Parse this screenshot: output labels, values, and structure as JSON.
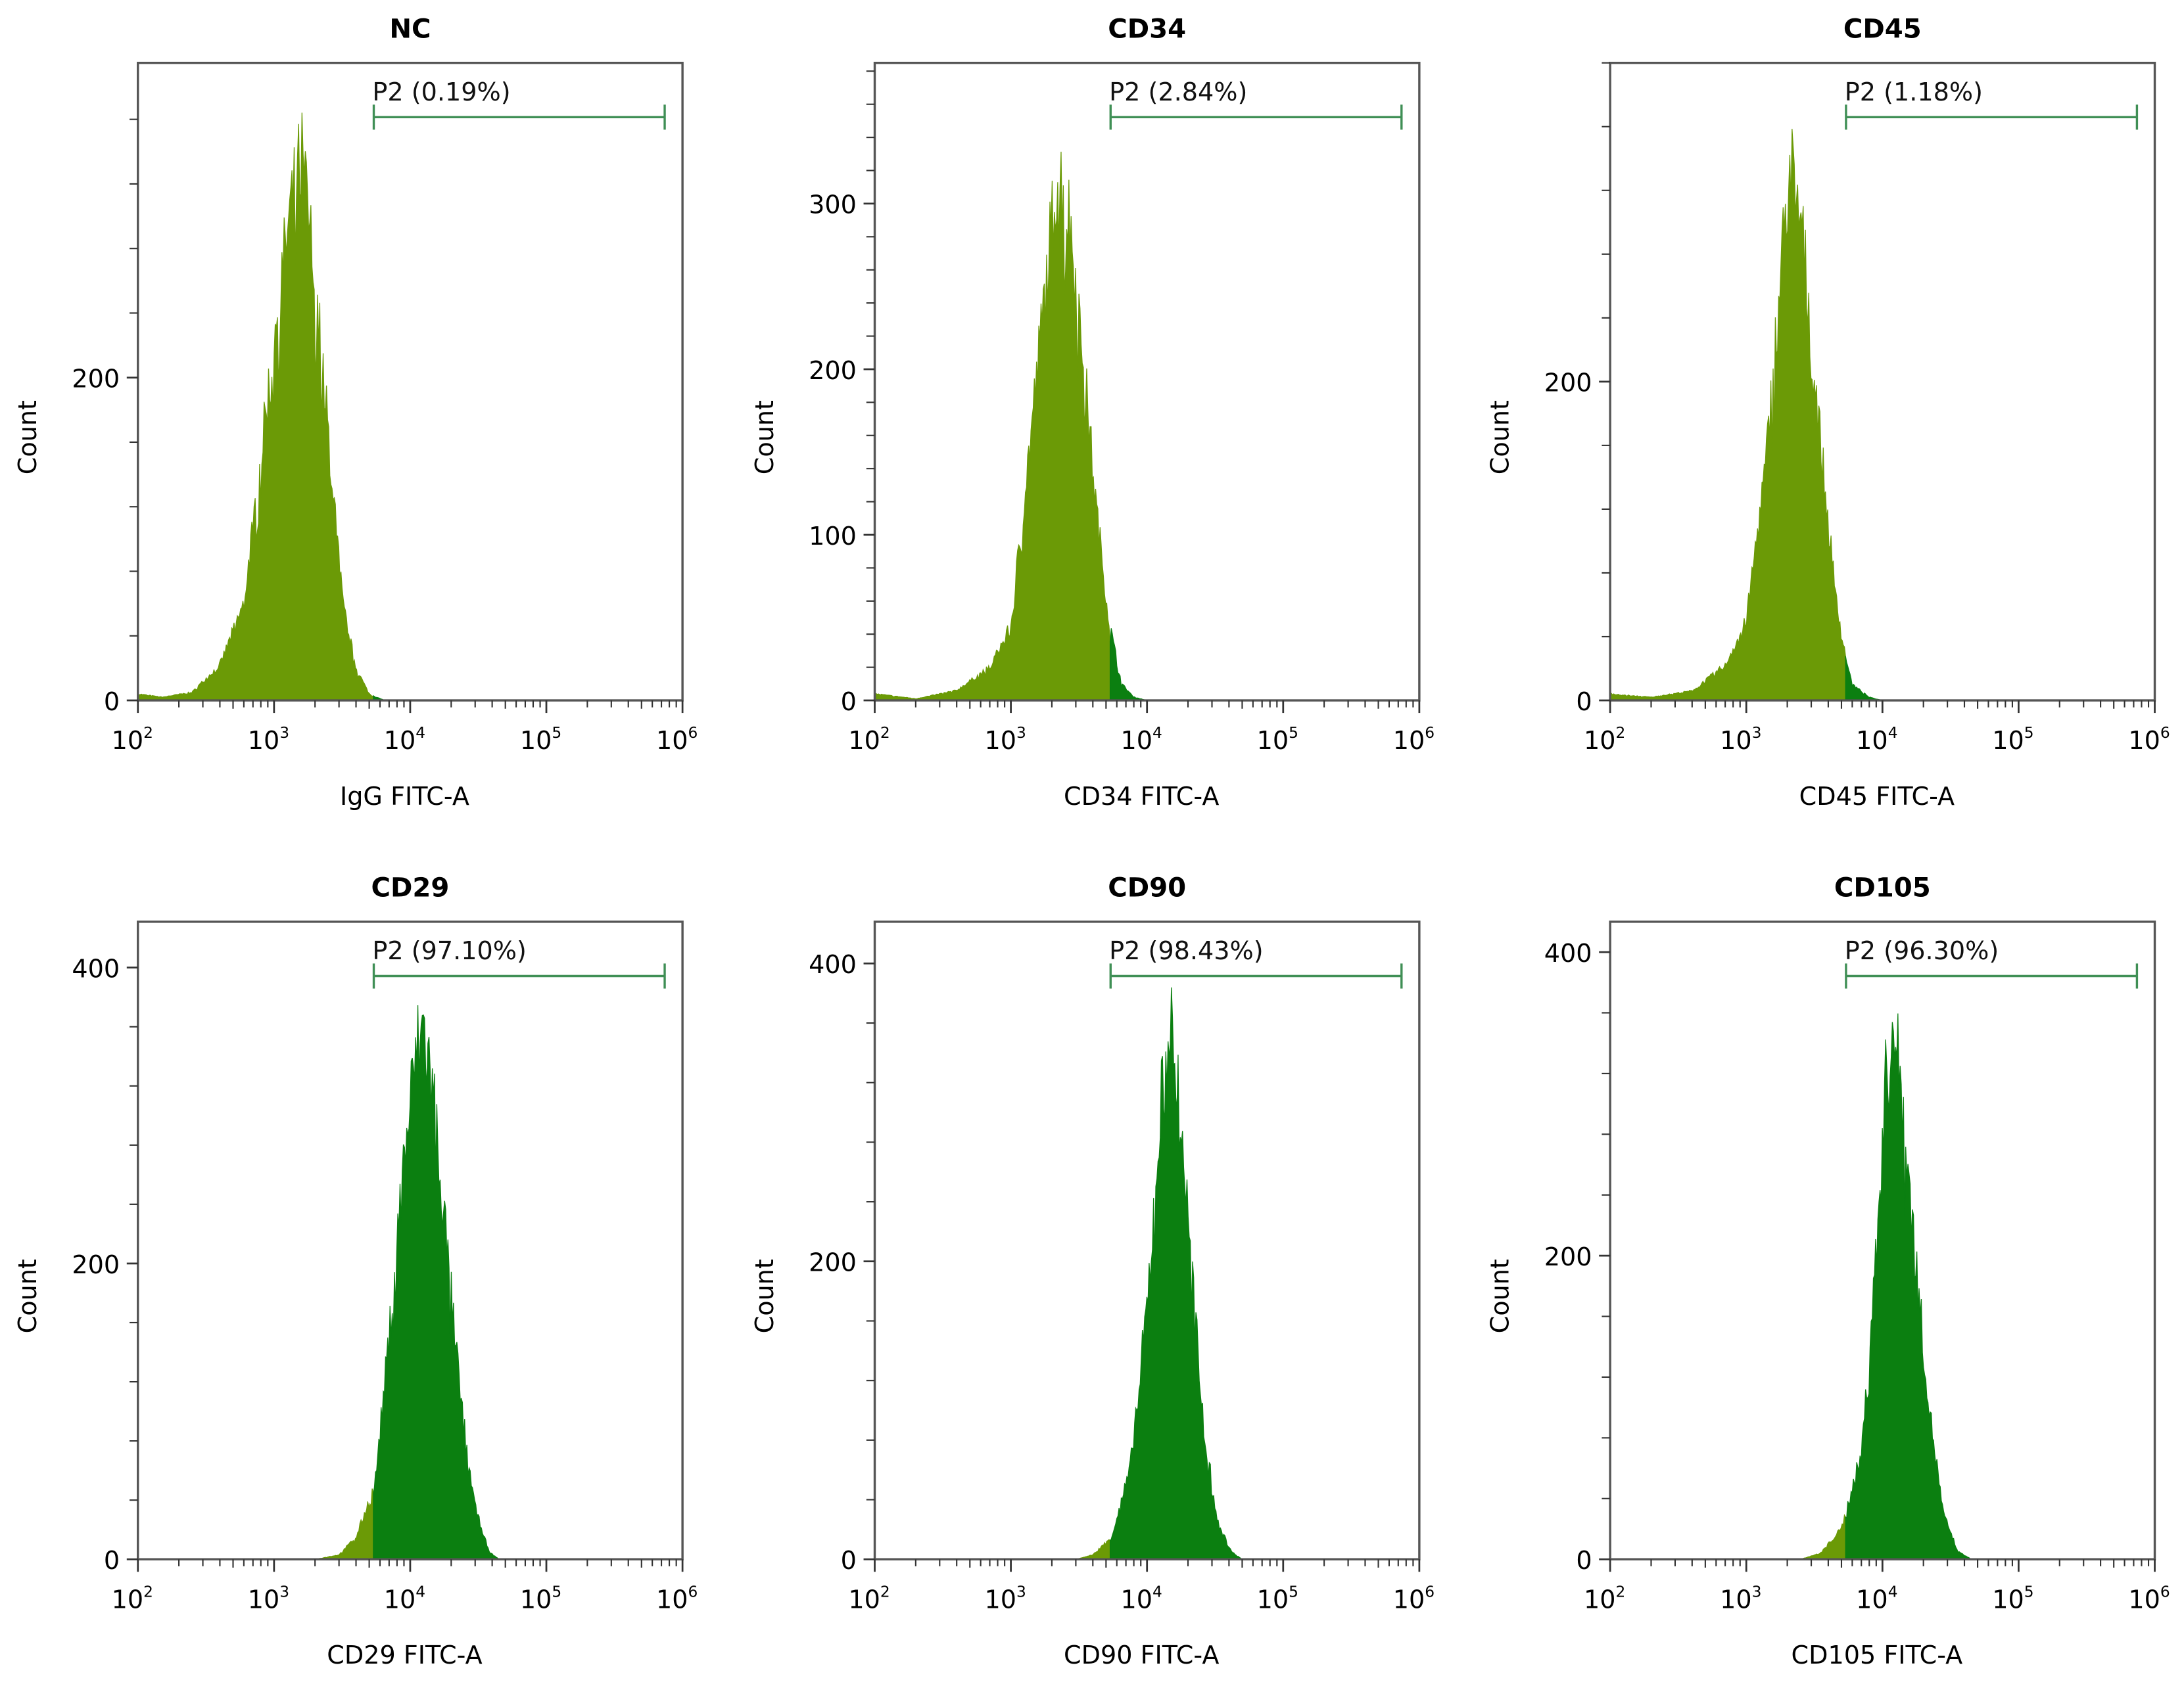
{
  "chart_data": [
    {
      "type": "area",
      "title": "NC",
      "xlabel": "IgG FITC-A",
      "ylabel": "Count",
      "x_scale": "log",
      "xlim": [
        100,
        1000000
      ],
      "x_ticks": [
        "2",
        "3",
        "4",
        "5",
        "6"
      ],
      "x_tick_base": "10",
      "y_ticks": [
        0,
        200
      ],
      "ylim": [
        0,
        395
      ],
      "y_minor_step": 40,
      "gate": {
        "label": "P2 (0.19%)",
        "range": [
          5400,
          740000
        ]
      },
      "histogram": [
        [
          100,
          4
        ],
        [
          150,
          2
        ],
        [
          250,
          5
        ],
        [
          400,
          22
        ],
        [
          600,
          60
        ],
        [
          800,
          150
        ],
        [
          1000,
          225
        ],
        [
          1300,
          300
        ],
        [
          1600,
          337
        ],
        [
          2000,
          260
        ],
        [
          2600,
          150
        ],
        [
          3200,
          60
        ],
        [
          4000,
          20
        ],
        [
          5000,
          4
        ],
        [
          6500,
          0
        ]
      ]
    },
    {
      "type": "area",
      "title": "CD34",
      "xlabel": "CD34 FITC-A",
      "ylabel": "Count",
      "x_scale": "log",
      "xlim": [
        100,
        1000000
      ],
      "x_ticks": [
        "2",
        "3",
        "4",
        "5",
        "6"
      ],
      "x_tick_base": "10",
      "y_ticks": [
        0,
        100,
        200,
        300
      ],
      "ylim": [
        0,
        385
      ],
      "y_minor_step": 20,
      "gate": {
        "label": "P2 (2.84%)",
        "range": [
          5400,
          740000
        ]
      },
      "histogram": [
        [
          100,
          4
        ],
        [
          200,
          1
        ],
        [
          400,
          6
        ],
        [
          700,
          20
        ],
        [
          1000,
          45
        ],
        [
          1400,
          160
        ],
        [
          1800,
          250
        ],
        [
          2200,
          322
        ],
        [
          2700,
          290
        ],
        [
          3300,
          220
        ],
        [
          4200,
          120
        ],
        [
          5200,
          50
        ],
        [
          6500,
          10
        ],
        [
          8000,
          2
        ],
        [
          10000,
          0
        ]
      ]
    },
    {
      "type": "area",
      "title": "CD45",
      "xlabel": "CD45 FITC-A",
      "ylabel": "Count",
      "x_scale": "log",
      "xlim": [
        100,
        1000000
      ],
      "x_ticks": [
        "2",
        "3",
        "4",
        "5",
        "6"
      ],
      "x_tick_base": "10",
      "y_ticks": [
        0,
        200
      ],
      "ylim": [
        0,
        400
      ],
      "y_minor_step": 40,
      "gate": {
        "label": "P2 (1.18%)",
        "range": [
          5400,
          740000
        ]
      },
      "histogram": [
        [
          100,
          4
        ],
        [
          200,
          2
        ],
        [
          400,
          6
        ],
        [
          700,
          22
        ],
        [
          1000,
          50
        ],
        [
          1400,
          150
        ],
        [
          1800,
          270
        ],
        [
          2100,
          340
        ],
        [
          2600,
          290
        ],
        [
          3200,
          200
        ],
        [
          4000,
          110
        ],
        [
          5000,
          40
        ],
        [
          6000,
          10
        ],
        [
          8000,
          2
        ],
        [
          10000,
          0
        ]
      ]
    },
    {
      "type": "area",
      "title": "CD29",
      "xlabel": "CD29 FITC-A",
      "ylabel": "Count",
      "x_scale": "log",
      "xlim": [
        100,
        1000000
      ],
      "x_ticks": [
        "2",
        "3",
        "4",
        "5",
        "6"
      ],
      "x_tick_base": "10",
      "y_ticks": [
        0,
        200,
        400
      ],
      "ylim": [
        0,
        431
      ],
      "y_minor_step": 40,
      "gate": {
        "label": "P2 (97.10%)",
        "range": [
          5400,
          740000
        ]
      },
      "histogram": [
        [
          2000,
          0
        ],
        [
          3000,
          3
        ],
        [
          4000,
          15
        ],
        [
          5500,
          50
        ],
        [
          7000,
          150
        ],
        [
          9000,
          270
        ],
        [
          11000,
          340
        ],
        [
          12500,
          360
        ],
        [
          15000,
          310
        ],
        [
          19000,
          200
        ],
        [
          24000,
          100
        ],
        [
          30000,
          35
        ],
        [
          38000,
          5
        ],
        [
          45000,
          0
        ]
      ]
    },
    {
      "type": "area",
      "title": "CD90",
      "xlabel": "CD90 FITC-A",
      "ylabel": "Count",
      "x_scale": "log",
      "xlim": [
        100,
        1000000
      ],
      "x_ticks": [
        "2",
        "3",
        "4",
        "5",
        "6"
      ],
      "x_tick_base": "10",
      "y_ticks": [
        0,
        200,
        400
      ],
      "ylim": [
        0,
        428
      ],
      "y_minor_step": 40,
      "gate": {
        "label": "P2 (98.43%)",
        "range": [
          5400,
          740000
        ]
      },
      "histogram": [
        [
          3000,
          0
        ],
        [
          4000,
          3
        ],
        [
          5500,
          15
        ],
        [
          7500,
          60
        ],
        [
          10000,
          170
        ],
        [
          12500,
          300
        ],
        [
          14500,
          364
        ],
        [
          17000,
          320
        ],
        [
          21000,
          200
        ],
        [
          26000,
          90
        ],
        [
          33000,
          25
        ],
        [
          42000,
          5
        ],
        [
          50000,
          0
        ]
      ]
    },
    {
      "type": "area",
      "title": "CD105",
      "xlabel": "CD105 FITC-A",
      "ylabel": "Count",
      "x_scale": "log",
      "xlim": [
        100,
        1000000
      ],
      "x_ticks": [
        "2",
        "3",
        "4",
        "5",
        "6"
      ],
      "x_tick_base": "10",
      "y_ticks": [
        0,
        200,
        400
      ],
      "ylim": [
        0,
        420
      ],
      "y_minor_step": 40,
      "gate": {
        "label": "P2 (96.30%)",
        "range": [
          5400,
          740000
        ]
      },
      "histogram": [
        [
          2500,
          0
        ],
        [
          3500,
          4
        ],
        [
          5000,
          20
        ],
        [
          7000,
          70
        ],
        [
          9000,
          200
        ],
        [
          10500,
          310
        ],
        [
          11500,
          355
        ],
        [
          13500,
          320
        ],
        [
          17000,
          210
        ],
        [
          22000,
          100
        ],
        [
          28000,
          30
        ],
        [
          36000,
          5
        ],
        [
          45000,
          0
        ]
      ]
    }
  ],
  "colors": {
    "ungated": "#6b9a06",
    "gated": "#0b7f10",
    "gate_line": "#3f8f55",
    "axis": "#555555"
  }
}
